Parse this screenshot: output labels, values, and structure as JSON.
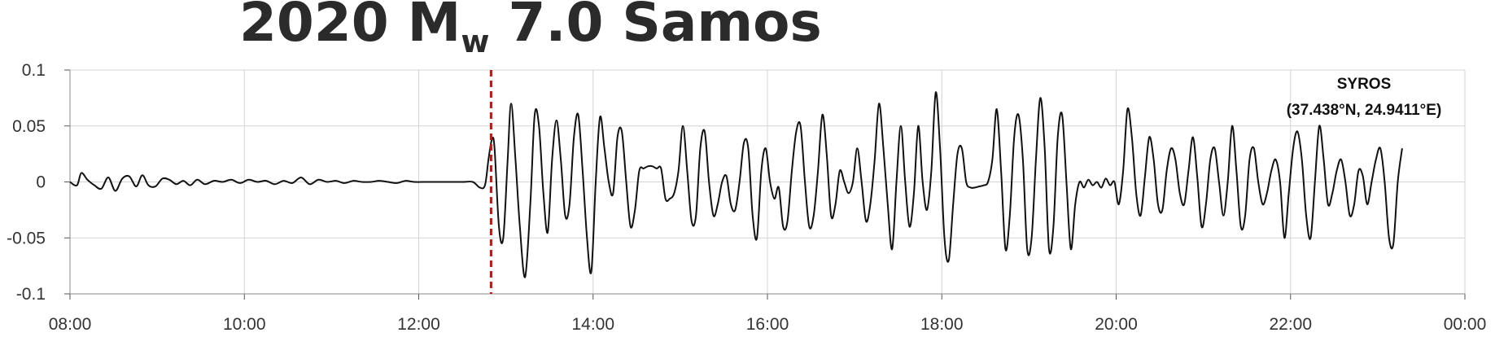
{
  "chart_data": {
    "type": "line",
    "title": {
      "prefix": "2020 M",
      "subscript": "w",
      "suffix": " 7.0 Samos"
    },
    "annotation": {
      "line1": "SYROS",
      "line2": "(37.438°N, 24.9411°E)"
    },
    "xlabel": "",
    "ylabel": "",
    "x_unit": "hours",
    "xlim": [
      8,
      24
    ],
    "ylim": [
      -0.1,
      0.1
    ],
    "x_ticks": [
      {
        "value": 8,
        "label": "08:00"
      },
      {
        "value": 10,
        "label": "10:00"
      },
      {
        "value": 12,
        "label": "12:00"
      },
      {
        "value": 14,
        "label": "14:00"
      },
      {
        "value": 16,
        "label": "16:00"
      },
      {
        "value": 18,
        "label": "18:00"
      },
      {
        "value": 20,
        "label": "20:00"
      },
      {
        "value": 22,
        "label": "22:00"
      },
      {
        "value": 24,
        "label": "00:00"
      }
    ],
    "y_ticks": [
      {
        "value": 0.1,
        "label": "0.1"
      },
      {
        "value": 0.05,
        "label": "0.05"
      },
      {
        "value": 0,
        "label": "0"
      },
      {
        "value": -0.05,
        "label": "-0.05"
      },
      {
        "value": -0.1,
        "label": "-0.1"
      }
    ],
    "grid": true,
    "event_time": 12.83,
    "event_line_color": "#cc1111",
    "series": [
      {
        "color": "#111111",
        "points": [
          [
            8.0,
            0.0
          ],
          [
            8.08,
            -0.003
          ],
          [
            8.13,
            0.008
          ],
          [
            8.2,
            0.002
          ],
          [
            8.28,
            -0.003
          ],
          [
            8.36,
            -0.006
          ],
          [
            8.44,
            0.004
          ],
          [
            8.52,
            -0.008
          ],
          [
            8.6,
            0.003
          ],
          [
            8.68,
            0.005
          ],
          [
            8.76,
            -0.004
          ],
          [
            8.83,
            0.006
          ],
          [
            8.9,
            -0.003
          ],
          [
            8.98,
            -0.004
          ],
          [
            9.06,
            0.003
          ],
          [
            9.14,
            0.002
          ],
          [
            9.22,
            -0.002
          ],
          [
            9.3,
            0.001
          ],
          [
            9.38,
            -0.003
          ],
          [
            9.46,
            0.002
          ],
          [
            9.55,
            -0.002
          ],
          [
            9.65,
            0.001
          ],
          [
            9.75,
            0.0
          ],
          [
            9.85,
            0.002
          ],
          [
            9.95,
            -0.001
          ],
          [
            10.05,
            0.002
          ],
          [
            10.15,
            0.0
          ],
          [
            10.25,
            0.001
          ],
          [
            10.35,
            -0.002
          ],
          [
            10.45,
            0.001
          ],
          [
            10.55,
            -0.001
          ],
          [
            10.65,
            0.004
          ],
          [
            10.75,
            -0.002
          ],
          [
            10.85,
            0.002
          ],
          [
            10.95,
            0.0
          ],
          [
            11.05,
            0.001
          ],
          [
            11.15,
            -0.001
          ],
          [
            11.25,
            0.001
          ],
          [
            11.35,
            0.0
          ],
          [
            11.45,
            0.0
          ],
          [
            11.55,
            0.001
          ],
          [
            11.65,
            0.0
          ],
          [
            11.75,
            -0.001
          ],
          [
            11.85,
            0.001
          ],
          [
            11.95,
            0.0
          ],
          [
            12.1,
            0.0
          ],
          [
            12.3,
            0.0
          ],
          [
            12.5,
            0.0
          ],
          [
            12.62,
            0.0
          ],
          [
            12.7,
            -0.005
          ],
          [
            12.76,
            -0.003
          ],
          [
            12.8,
            0.02
          ],
          [
            12.84,
            0.038
          ],
          [
            12.87,
            0.03
          ],
          [
            12.92,
            -0.04
          ],
          [
            12.97,
            -0.05
          ],
          [
            13.02,
            0.02
          ],
          [
            13.06,
            0.07
          ],
          [
            13.11,
            0.02
          ],
          [
            13.16,
            -0.04
          ],
          [
            13.22,
            -0.085
          ],
          [
            13.28,
            -0.02
          ],
          [
            13.33,
            0.06
          ],
          [
            13.38,
            0.05
          ],
          [
            13.43,
            -0.01
          ],
          [
            13.48,
            -0.045
          ],
          [
            13.53,
            0.02
          ],
          [
            13.58,
            0.055
          ],
          [
            13.63,
            0.02
          ],
          [
            13.68,
            -0.03
          ],
          [
            13.73,
            -0.02
          ],
          [
            13.78,
            0.04
          ],
          [
            13.83,
            0.06
          ],
          [
            13.88,
            0.01
          ],
          [
            13.93,
            -0.05
          ],
          [
            13.98,
            -0.08
          ],
          [
            14.03,
            0.0
          ],
          [
            14.08,
            0.058
          ],
          [
            14.13,
            0.03
          ],
          [
            14.18,
            0.0
          ],
          [
            14.23,
            -0.01
          ],
          [
            14.28,
            0.04
          ],
          [
            14.33,
            0.045
          ],
          [
            14.38,
            0.0
          ],
          [
            14.43,
            -0.04
          ],
          [
            14.48,
            -0.025
          ],
          [
            14.53,
            0.01
          ],
          [
            14.58,
            0.012
          ],
          [
            14.63,
            0.014
          ],
          [
            14.68,
            0.014
          ],
          [
            14.73,
            0.012
          ],
          [
            14.78,
            0.012
          ],
          [
            14.83,
            -0.015
          ],
          [
            14.88,
            -0.015
          ],
          [
            14.93,
            -0.01
          ],
          [
            14.98,
            0.01
          ],
          [
            15.03,
            0.05
          ],
          [
            15.08,
            0.01
          ],
          [
            15.13,
            -0.035
          ],
          [
            15.18,
            -0.03
          ],
          [
            15.23,
            0.03
          ],
          [
            15.28,
            0.045
          ],
          [
            15.33,
            0.0
          ],
          [
            15.38,
            -0.03
          ],
          [
            15.43,
            -0.02
          ],
          [
            15.48,
            0.0
          ],
          [
            15.53,
            0.005
          ],
          [
            15.58,
            -0.02
          ],
          [
            15.63,
            -0.025
          ],
          [
            15.68,
            0.0
          ],
          [
            15.73,
            0.035
          ],
          [
            15.78,
            0.03
          ],
          [
            15.83,
            -0.03
          ],
          [
            15.88,
            -0.05
          ],
          [
            15.93,
            0.01
          ],
          [
            15.98,
            0.03
          ],
          [
            16.03,
            0.0
          ],
          [
            16.08,
            -0.015
          ],
          [
            16.13,
            -0.005
          ],
          [
            16.18,
            -0.04
          ],
          [
            16.23,
            -0.035
          ],
          [
            16.28,
            0.01
          ],
          [
            16.33,
            0.045
          ],
          [
            16.38,
            0.05
          ],
          [
            16.43,
            0.0
          ],
          [
            16.48,
            -0.04
          ],
          [
            16.53,
            -0.03
          ],
          [
            16.58,
            0.01
          ],
          [
            16.63,
            0.06
          ],
          [
            16.68,
            0.025
          ],
          [
            16.73,
            -0.03
          ],
          [
            16.78,
            -0.02
          ],
          [
            16.83,
            0.01
          ],
          [
            16.88,
            0.0
          ],
          [
            16.93,
            -0.01
          ],
          [
            16.98,
            0.0
          ],
          [
            17.03,
            0.03
          ],
          [
            17.08,
            0.0
          ],
          [
            17.13,
            -0.035
          ],
          [
            17.18,
            -0.02
          ],
          [
            17.23,
            0.02
          ],
          [
            17.28,
            0.07
          ],
          [
            17.33,
            0.03
          ],
          [
            17.38,
            -0.02
          ],
          [
            17.43,
            -0.06
          ],
          [
            17.48,
            0.0
          ],
          [
            17.53,
            0.05
          ],
          [
            17.58,
            0.0
          ],
          [
            17.63,
            -0.04
          ],
          [
            17.68,
            -0.01
          ],
          [
            17.73,
            0.05
          ],
          [
            17.78,
            0.0
          ],
          [
            17.83,
            -0.025
          ],
          [
            17.88,
            0.01
          ],
          [
            17.93,
            0.08
          ],
          [
            17.98,
            0.03
          ],
          [
            18.03,
            -0.05
          ],
          [
            18.08,
            -0.07
          ],
          [
            18.13,
            -0.02
          ],
          [
            18.18,
            0.025
          ],
          [
            18.23,
            0.03
          ],
          [
            18.28,
            0.0
          ],
          [
            18.33,
            -0.005
          ],
          [
            18.38,
            -0.005
          ],
          [
            18.43,
            -0.004
          ],
          [
            18.48,
            -0.003
          ],
          [
            18.53,
            0.0
          ],
          [
            18.58,
            0.02
          ],
          [
            18.63,
            0.065
          ],
          [
            18.68,
            0.01
          ],
          [
            18.73,
            -0.06
          ],
          [
            18.78,
            -0.03
          ],
          [
            18.83,
            0.04
          ],
          [
            18.88,
            0.06
          ],
          [
            18.93,
            0.02
          ],
          [
            18.98,
            -0.06
          ],
          [
            19.03,
            -0.05
          ],
          [
            19.08,
            0.02
          ],
          [
            19.13,
            0.075
          ],
          [
            19.18,
            0.03
          ],
          [
            19.23,
            -0.06
          ],
          [
            19.28,
            -0.04
          ],
          [
            19.33,
            0.04
          ],
          [
            19.38,
            0.06
          ],
          [
            19.43,
            0.0
          ],
          [
            19.48,
            -0.06
          ],
          [
            19.53,
            -0.02
          ],
          [
            19.58,
            0.0
          ],
          [
            19.63,
            -0.005
          ],
          [
            19.68,
            0.002
          ],
          [
            19.73,
            -0.003
          ],
          [
            19.78,
            0.0
          ],
          [
            19.83,
            -0.005
          ],
          [
            19.88,
            0.003
          ],
          [
            19.93,
            -0.003
          ],
          [
            19.98,
            0.0
          ],
          [
            20.03,
            -0.02
          ],
          [
            20.08,
            0.01
          ],
          [
            20.13,
            0.065
          ],
          [
            20.18,
            0.04
          ],
          [
            20.23,
            -0.01
          ],
          [
            20.28,
            -0.03
          ],
          [
            20.33,
            0.005
          ],
          [
            20.38,
            0.04
          ],
          [
            20.43,
            0.02
          ],
          [
            20.48,
            -0.02
          ],
          [
            20.53,
            -0.025
          ],
          [
            20.58,
            0.01
          ],
          [
            20.63,
            0.03
          ],
          [
            20.68,
            0.02
          ],
          [
            20.73,
            -0.01
          ],
          [
            20.78,
            -0.02
          ],
          [
            20.83,
            0.01
          ],
          [
            20.88,
            0.04
          ],
          [
            20.93,
            0.005
          ],
          [
            20.98,
            -0.04
          ],
          [
            21.03,
            -0.02
          ],
          [
            21.08,
            0.02
          ],
          [
            21.13,
            0.03
          ],
          [
            21.18,
            0.0
          ],
          [
            21.23,
            -0.03
          ],
          [
            21.28,
            0.0
          ],
          [
            21.33,
            0.05
          ],
          [
            21.38,
            0.01
          ],
          [
            21.43,
            -0.04
          ],
          [
            21.48,
            -0.03
          ],
          [
            21.53,
            0.02
          ],
          [
            21.58,
            0.03
          ],
          [
            21.63,
            0.0
          ],
          [
            21.68,
            -0.02
          ],
          [
            21.73,
            -0.01
          ],
          [
            21.78,
            0.01
          ],
          [
            21.83,
            0.02
          ],
          [
            21.88,
            0.0
          ],
          [
            21.93,
            -0.05
          ],
          [
            21.98,
            -0.01
          ],
          [
            22.03,
            0.03
          ],
          [
            22.08,
            0.045
          ],
          [
            22.13,
            0.02
          ],
          [
            22.18,
            -0.03
          ],
          [
            22.23,
            -0.05
          ],
          [
            22.28,
            0.0
          ],
          [
            22.33,
            0.05
          ],
          [
            22.38,
            0.02
          ],
          [
            22.43,
            -0.02
          ],
          [
            22.48,
            -0.01
          ],
          [
            22.53,
            0.01
          ],
          [
            22.58,
            0.02
          ],
          [
            22.63,
            0.0
          ],
          [
            22.68,
            -0.03
          ],
          [
            22.73,
            -0.02
          ],
          [
            22.78,
            0.01
          ],
          [
            22.83,
            0.005
          ],
          [
            22.88,
            -0.02
          ],
          [
            22.93,
            0.0
          ],
          [
            22.98,
            0.02
          ],
          [
            23.03,
            0.03
          ],
          [
            23.08,
            0.0
          ],
          [
            23.13,
            -0.05
          ],
          [
            23.18,
            -0.055
          ],
          [
            23.23,
            0.0
          ],
          [
            23.28,
            0.03
          ]
        ]
      }
    ]
  }
}
